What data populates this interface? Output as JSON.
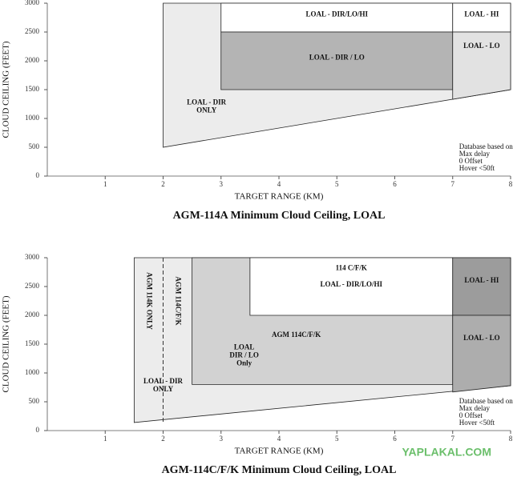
{
  "chart_data": [
    {
      "type": "region",
      "title": "AGM-114A Minimum Cloud Ceiling, LOAL",
      "x_label": "TARGET RANGE (KM)",
      "y_label": "CLOUD CEILING (FEET)",
      "xlim": [
        0,
        8
      ],
      "ylim": [
        0,
        3000
      ],
      "xticks": [
        1,
        2,
        3,
        4,
        5,
        6,
        7,
        8
      ],
      "yticks": [
        0,
        500,
        1000,
        1500,
        2000,
        2500,
        3000
      ],
      "regions": [
        {
          "color": "#ececec",
          "x": [
            2,
            2,
            8,
            8
          ],
          "y": [
            500,
            3000,
            3000,
            1500
          ]
        },
        {
          "color": "#ffffff",
          "x": [
            3,
            3,
            7,
            7
          ],
          "y": [
            2500,
            3000,
            3000,
            2500
          ]
        },
        {
          "color": "#b4b4b4",
          "x": [
            3,
            3,
            7,
            7
          ],
          "y": [
            1500,
            2500,
            2500,
            1500
          ]
        },
        {
          "color": "#ffffff",
          "x": [
            7,
            7,
            8,
            8
          ],
          "y": [
            2500,
            3000,
            3000,
            2500
          ]
        },
        {
          "color": "#e2e2e2",
          "x": [
            7,
            7,
            8,
            8
          ],
          "y": [
            1333,
            2500,
            2500,
            1500
          ]
        }
      ],
      "annotations": [
        {
          "text": [
            "LOAL - DIR/LO/HI"
          ],
          "x": 5,
          "y": 2800
        },
        {
          "text": [
            "LOAL - DIR / LO"
          ],
          "x": 5,
          "y": 2050
        },
        {
          "text": [
            "LOAL - HI"
          ],
          "x": 7.5,
          "y": 2800
        },
        {
          "text": [
            "LOAL - LO"
          ],
          "x": 7.5,
          "y": 2250
        },
        {
          "text": [
            "LOAL - DIR",
            "ONLY"
          ],
          "x": 2.75,
          "y": 1200
        }
      ],
      "note": [
        "Database based on",
        "Max delay",
        "0 Offset",
        "Hover <50ft"
      ]
    },
    {
      "type": "region",
      "title": "AGM-114C/F/K Minimum Cloud Ceiling, LOAL",
      "x_label": "TARGET RANGE (KM)",
      "y_label": "CLOUD CEILING (FEET)",
      "xlim": [
        0,
        8
      ],
      "ylim": [
        0,
        3000
      ],
      "xticks": [
        1,
        2,
        3,
        4,
        5,
        6,
        7,
        8
      ],
      "yticks": [
        0,
        500,
        1000,
        1500,
        2000,
        2500,
        3000
      ],
      "regions": [
        {
          "color": "#ececec",
          "x": [
            1.5,
            1.5,
            8,
            8
          ],
          "y": [
            140,
            3000,
            3000,
            780
          ]
        },
        {
          "color": "#d2d2d2",
          "x": [
            2.5,
            2.5,
            7,
            7
          ],
          "y": [
            800,
            3000,
            3000,
            800
          ]
        },
        {
          "color": "#ffffff",
          "x": [
            3.5,
            3.5,
            7,
            7
          ],
          "y": [
            2000,
            3000,
            3000,
            2000
          ]
        },
        {
          "color": "#9c9c9c",
          "x": [
            7,
            7,
            8,
            8
          ],
          "y": [
            2000,
            3000,
            3000,
            2000
          ]
        },
        {
          "color": "#adadad",
          "x": [
            7,
            7,
            8,
            8
          ],
          "y": [
            670,
            2000,
            2000,
            780
          ]
        }
      ],
      "divider_x": 2,
      "annotations": [
        {
          "text": [
            "114 C/F/K"
          ],
          "x": 5.25,
          "y": 2810
        },
        {
          "text": [
            "LOAL - DIR/LO/HI"
          ],
          "x": 5.25,
          "y": 2530
        },
        {
          "text": [
            "LOAL - HI"
          ],
          "x": 7.5,
          "y": 2600
        },
        {
          "text": [
            "LOAL - LO"
          ],
          "x": 7.5,
          "y": 1600
        },
        {
          "text": [
            "AGM 114C/F/K"
          ],
          "x": 4.3,
          "y": 1650
        },
        {
          "text": [
            "LOAL",
            "DIR / LO",
            "Only"
          ],
          "x": 3.4,
          "y": 1300
        },
        {
          "text": [
            "LOAL - DIR",
            "ONLY"
          ],
          "x": 2,
          "y": 780
        },
        {
          "text": [
            "AGM 114K ONLY"
          ],
          "x": 1.75,
          "y": 2250,
          "orientation": "vertical"
        },
        {
          "text": [
            "AGM 114C/F/K"
          ],
          "x": 2.25,
          "y": 2250,
          "orientation": "vertical"
        }
      ],
      "note": [
        "Database based on",
        "Max delay",
        "0 Offset",
        "Hover <50ft"
      ]
    }
  ],
  "watermark": "YAPLAKAL.COM"
}
